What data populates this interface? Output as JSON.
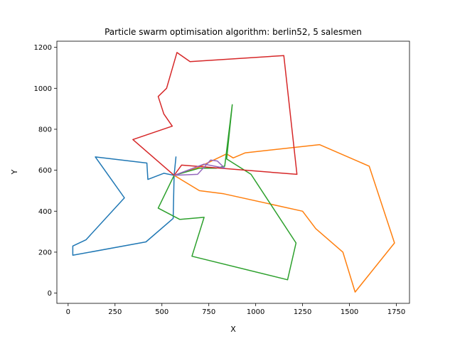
{
  "chart_data": {
    "type": "line",
    "title": "Particle swarm optimisation algorithm: berlin52, 5 salesmen",
    "xlabel": "X",
    "ylabel": "Y",
    "xlim": [
      -60,
      1820
    ],
    "ylim": [
      -50,
      1230
    ],
    "xticks": [
      0,
      250,
      500,
      750,
      1000,
      1250,
      1500,
      1750
    ],
    "yticks": [
      0,
      200,
      400,
      600,
      800,
      1000,
      1200
    ],
    "grid": false,
    "legend": "none",
    "series": [
      {
        "color": "#1f77b4",
        "x": [
          565,
          560,
          415,
          25,
          25,
          95,
          300,
          145,
          420,
          425,
          510,
          565,
          575,
          565
        ],
        "y": [
          575,
          365,
          250,
          185,
          230,
          260,
          465,
          665,
          635,
          555,
          585,
          575,
          665,
          575
        ]
      },
      {
        "color": "#ff7f0e",
        "x": [
          565,
          700,
          830,
          1250,
          1320,
          1465,
          1530,
          1740,
          1605,
          1340,
          945,
          880,
          845,
          685,
          565
        ],
        "y": [
          575,
          500,
          485,
          400,
          315,
          200,
          5,
          245,
          620,
          725,
          685,
          660,
          680,
          610,
          575
        ]
      },
      {
        "color": "#2ca02c",
        "x": [
          565,
          480,
          595,
          725,
          660,
          1170,
          1215,
          975,
          845,
          875,
          835,
          790,
          700,
          565
        ],
        "y": [
          575,
          415,
          360,
          370,
          180,
          65,
          245,
          580,
          655,
          920,
          620,
          610,
          610,
          575
        ]
      },
      {
        "color": "#d62728",
        "x": [
          565,
          345,
          555,
          510,
          480,
          525,
          580,
          650,
          1150,
          1220,
          605,
          565
        ],
        "y": [
          575,
          750,
          815,
          875,
          960,
          1000,
          1175,
          1130,
          1160,
          580,
          625,
          575
        ]
      },
      {
        "color": "#9467bd",
        "x": [
          565,
          690,
          760,
          795,
          835,
          725,
          565
        ],
        "y": [
          575,
          580,
          650,
          645,
          610,
          630,
          575
        ]
      }
    ]
  }
}
